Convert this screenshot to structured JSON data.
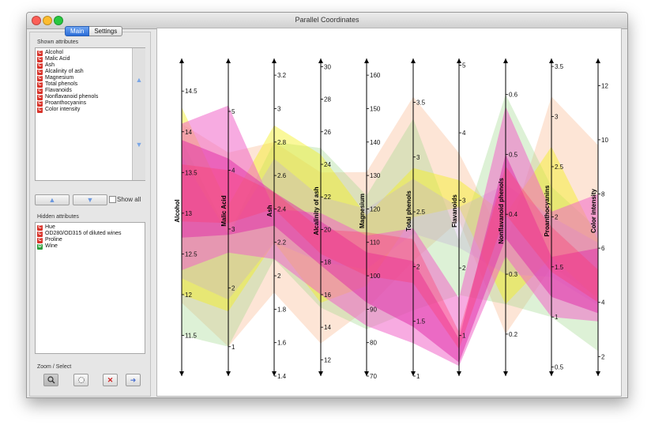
{
  "window": {
    "title": "Parallel Coordinates"
  },
  "tabs": [
    {
      "label": "Main"
    },
    {
      "label": "Settings"
    }
  ],
  "shown": {
    "label": "Shown attributes",
    "items": [
      {
        "label": "Alcohol",
        "type": "C"
      },
      {
        "label": "Malic Acid",
        "type": "C"
      },
      {
        "label": "Ash",
        "type": "C"
      },
      {
        "label": "Alcalinity of ash",
        "type": "C"
      },
      {
        "label": "Magnesium",
        "type": "C"
      },
      {
        "label": "Total phenols",
        "type": "C"
      },
      {
        "label": "Flavanoids",
        "type": "C"
      },
      {
        "label": "Nonflavanoid phenols",
        "type": "C"
      },
      {
        "label": "Proanthocyanins",
        "type": "C"
      },
      {
        "label": "Color intensity",
        "type": "C"
      }
    ]
  },
  "show_all": {
    "label": "Show all",
    "checked": false
  },
  "hidden": {
    "label": "Hidden attributes",
    "items": [
      {
        "label": "Hue",
        "type": "C"
      },
      {
        "label": "OD280/OD315 of diluted wines",
        "type": "C"
      },
      {
        "label": "Proline",
        "type": "C"
      },
      {
        "label": "Wine",
        "type": "D"
      }
    ]
  },
  "zoom": {
    "label": "Zoom / Select",
    "tools": [
      "zoom-icon",
      "select-rectangle-icon",
      "clear-icon",
      "send-icon"
    ]
  },
  "colors": {
    "C": "#d9342b",
    "D": "#2e9e3d"
  },
  "chart_data": {
    "type": "parallel-coordinates",
    "axes": [
      {
        "name": "Alcohol",
        "min": 11.0,
        "max": 14.9,
        "ticks": [
          11.5,
          12,
          12.5,
          13,
          13.5,
          14,
          14.5
        ]
      },
      {
        "name": "Malic Acid",
        "min": 0.5,
        "max": 5.9,
        "ticks": [
          1,
          2,
          3,
          4,
          5
        ]
      },
      {
        "name": "Ash",
        "min": 1.4,
        "max": 3.3,
        "ticks": [
          1.4,
          1.6,
          1.8,
          2,
          2.2,
          2.4,
          2.6,
          2.8,
          3,
          3.2
        ]
      },
      {
        "name": "Alcalinity of ash",
        "min": 11,
        "max": 30.5,
        "ticks": [
          12,
          14,
          16,
          18,
          20,
          22,
          24,
          26,
          28,
          30
        ]
      },
      {
        "name": "Magnesium",
        "min": 70,
        "max": 165,
        "ticks": [
          70,
          80,
          90,
          100,
          110,
          120,
          130,
          140,
          150,
          160
        ]
      },
      {
        "name": "Total phenols",
        "min": 1,
        "max": 3.9,
        "ticks": [
          1,
          1.5,
          2,
          2.5,
          3,
          3.5
        ]
      },
      {
        "name": "Flavanoids",
        "min": 0.4,
        "max": 5.1,
        "ticks": [
          1,
          2,
          3,
          4,
          5
        ]
      },
      {
        "name": "Nonflavanoid phenols",
        "min": 0.13,
        "max": 0.66,
        "ticks": [
          0.2,
          0.3,
          0.4,
          0.5,
          0.6
        ]
      },
      {
        "name": "Proanthocyanins",
        "min": 0.41,
        "max": 3.58,
        "ticks": [
          0.5,
          1,
          1.5,
          2,
          2.5,
          3,
          3.5
        ]
      },
      {
        "name": "Color intensity",
        "min": 1.28,
        "max": 13.0,
        "ticks": [
          2,
          4,
          6,
          8,
          10,
          12
        ]
      }
    ],
    "bands": [
      {
        "color": "#f7a26a",
        "opacity": 0.28,
        "upper": [
          14.1,
          4.3,
          2.8,
          23.5,
          131,
          3.55,
          3.7,
          0.35,
          3.2,
          9.8
        ],
        "lower": [
          11.9,
          1.0,
          1.9,
          13.0,
          90,
          2.05,
          2.7,
          0.2,
          1.5,
          4.2
        ]
      },
      {
        "color": "#9ed88a",
        "opacity": 0.35,
        "upper": [
          13.9,
          2.9,
          2.8,
          25.0,
          124,
          3.35,
          2.4,
          0.6,
          2.3,
          6.7
        ],
        "lower": [
          11.5,
          1.0,
          2.1,
          15.2,
          84,
          1.6,
          1.6,
          0.25,
          1.0,
          2.2
        ]
      },
      {
        "color": "#f5f01e",
        "opacity": 0.45,
        "upper": [
          14.3,
          3.4,
          2.9,
          24.6,
          118,
          2.9,
          3.3,
          0.4,
          2.7,
          6.3
        ],
        "lower": [
          12.0,
          1.6,
          2.2,
          15.5,
          97,
          2.45,
          2.9,
          0.25,
          1.6,
          4.1
        ]
      },
      {
        "color": "#c2aed8",
        "opacity": 0.35,
        "upper": [
          13.7,
          2.9,
          2.7,
          22.0,
          120,
          2.8,
          2.9,
          0.45,
          2.0,
          6.2
        ],
        "lower": [
          12.2,
          1.8,
          2.2,
          18.0,
          102,
          2.3,
          2.3,
          0.3,
          1.4,
          3.9
        ]
      },
      {
        "color": "#f066c8",
        "opacity": 0.55,
        "upper": [
          14.1,
          5.1,
          2.4,
          21.0,
          112,
          2.35,
          1.55,
          0.58,
          2.05,
          8.0
        ],
        "lower": [
          12.3,
          2.6,
          2.1,
          16.0,
          85,
          1.3,
          0.55,
          0.33,
          1.0,
          3.3
        ]
      },
      {
        "color": "#e02aa8",
        "opacity": 0.5,
        "upper": [
          13.9,
          4.2,
          2.5,
          20.5,
          107,
          2.05,
          0.95,
          0.5,
          1.6,
          6.0
        ],
        "lower": [
          12.7,
          2.9,
          2.3,
          17.8,
          92,
          1.45,
          0.6,
          0.36,
          1.2,
          3.6
        ]
      },
      {
        "color": "#ff3a6a",
        "opacity": 0.35,
        "upper": [
          13.6,
          4.0,
          2.5,
          20.0,
          113,
          2.25,
          1.05,
          0.48,
          1.9,
          5.2
        ],
        "lower": [
          12.9,
          3.1,
          2.4,
          18.5,
          100,
          1.85,
          0.8,
          0.4,
          1.45,
          4.0
        ]
      }
    ]
  }
}
